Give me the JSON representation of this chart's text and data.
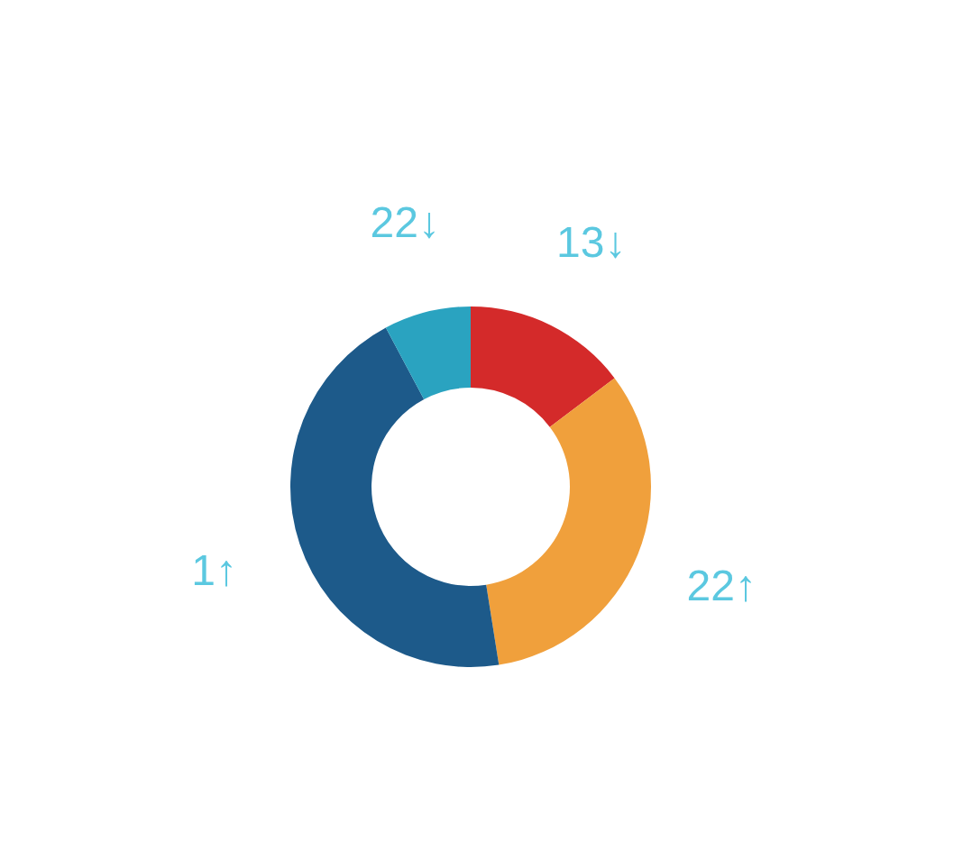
{
  "chart_data": {
    "type": "donut",
    "categories": [
      null,
      null,
      null,
      null
    ],
    "values": [
      14.7,
      32.8,
      44.7,
      7.8
    ],
    "colors": [
      "#d42a2a",
      "#f0a03c",
      "#1d5a8a",
      "#2aa3c0"
    ],
    "annotations": [
      "13↓",
      "22↑",
      "1↑",
      "22↓"
    ]
  }
}
